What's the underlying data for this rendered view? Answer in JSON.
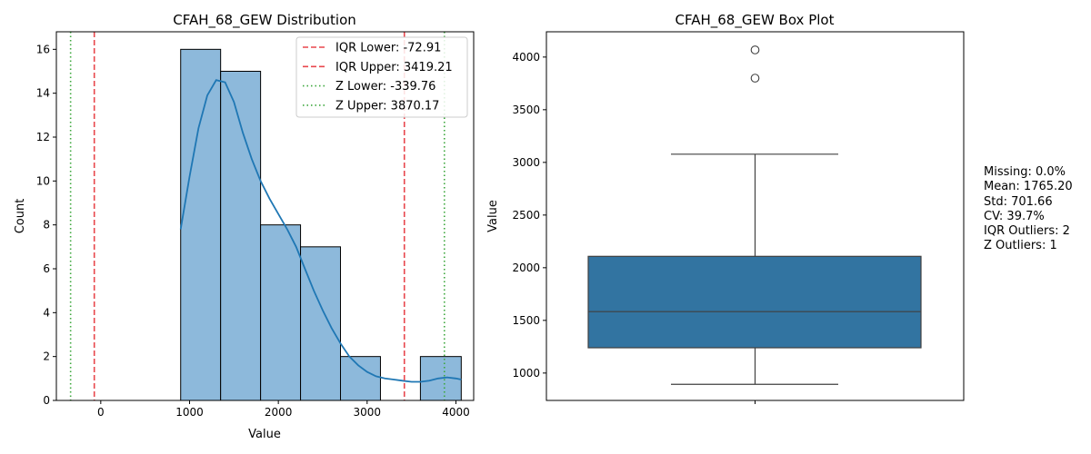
{
  "chart_data": [
    {
      "type": "bar",
      "title": "CFAH_68_GEW Distribution",
      "xlabel": "Value",
      "ylabel": "Count",
      "xlim": [
        -500,
        4200
      ],
      "ylim": [
        0,
        16.8
      ],
      "xticks": [
        0,
        1000,
        2000,
        3000,
        4000
      ],
      "yticks": [
        0,
        2,
        4,
        6,
        8,
        10,
        12,
        14,
        16
      ],
      "grid": false,
      "bin_edges": [
        900,
        1350,
        1800,
        2250,
        2700,
        3150,
        3600,
        4060
      ],
      "counts": [
        16,
        15,
        8,
        7,
        2,
        0,
        2
      ],
      "bar_color": "#8db9db",
      "kde": {
        "x": [
          900,
          1000,
          1100,
          1200,
          1300,
          1400,
          1500,
          1600,
          1700,
          1800,
          1900,
          2000,
          2100,
          2200,
          2300,
          2400,
          2500,
          2600,
          2700,
          2800,
          2900,
          3000,
          3100,
          3200,
          3300,
          3400,
          3500,
          3600,
          3700,
          3800,
          3900,
          4000,
          4060
        ],
        "y": [
          7.8,
          10.2,
          12.4,
          13.9,
          14.6,
          14.5,
          13.6,
          12.2,
          11.0,
          10.0,
          9.2,
          8.5,
          7.8,
          7.0,
          6.0,
          5.0,
          4.1,
          3.3,
          2.6,
          2.0,
          1.6,
          1.3,
          1.1,
          1.0,
          0.95,
          0.9,
          0.85,
          0.85,
          0.9,
          1.0,
          1.05,
          1.0,
          0.95
        ],
        "color": "#1f77b4"
      },
      "vlines": [
        {
          "label": "IQR Lower: -72.91",
          "x": -72.91,
          "color": "#e8474d",
          "style": "dashed"
        },
        {
          "label": "IQR Upper: 3419.21",
          "x": 3419.21,
          "color": "#e8474d",
          "style": "dashed"
        },
        {
          "label": "Z Lower: -339.76",
          "x": -339.76,
          "color": "#3da73d",
          "style": "dotted"
        },
        {
          "label": "Z Upper: 3870.17",
          "x": 3870.17,
          "color": "#3da73d",
          "style": "dotted"
        }
      ],
      "legend_position": "top-right"
    },
    {
      "type": "box",
      "title": "CFAH_68_GEW Box Plot",
      "xlabel": "",
      "ylabel": "Value",
      "ylim": [
        740,
        4240
      ],
      "yticks": [
        1000,
        1500,
        2000,
        2500,
        3000,
        3500,
        4000
      ],
      "grid": false,
      "box": {
        "whisker_low": 893,
        "q1": 1240,
        "median": 1583,
        "q3": 2108,
        "whisker_high": 3078
      },
      "outliers": [
        3800,
        4068
      ],
      "box_color": "#3274a1"
    }
  ],
  "stats": {
    "missing": "Missing: 0.0%",
    "mean": "Mean: 1765.20",
    "std": "Std: 701.66",
    "cv": "CV: 39.7%",
    "iqr_outliers": "IQR Outliers: 2",
    "z_outliers": "Z Outliers: 1"
  }
}
